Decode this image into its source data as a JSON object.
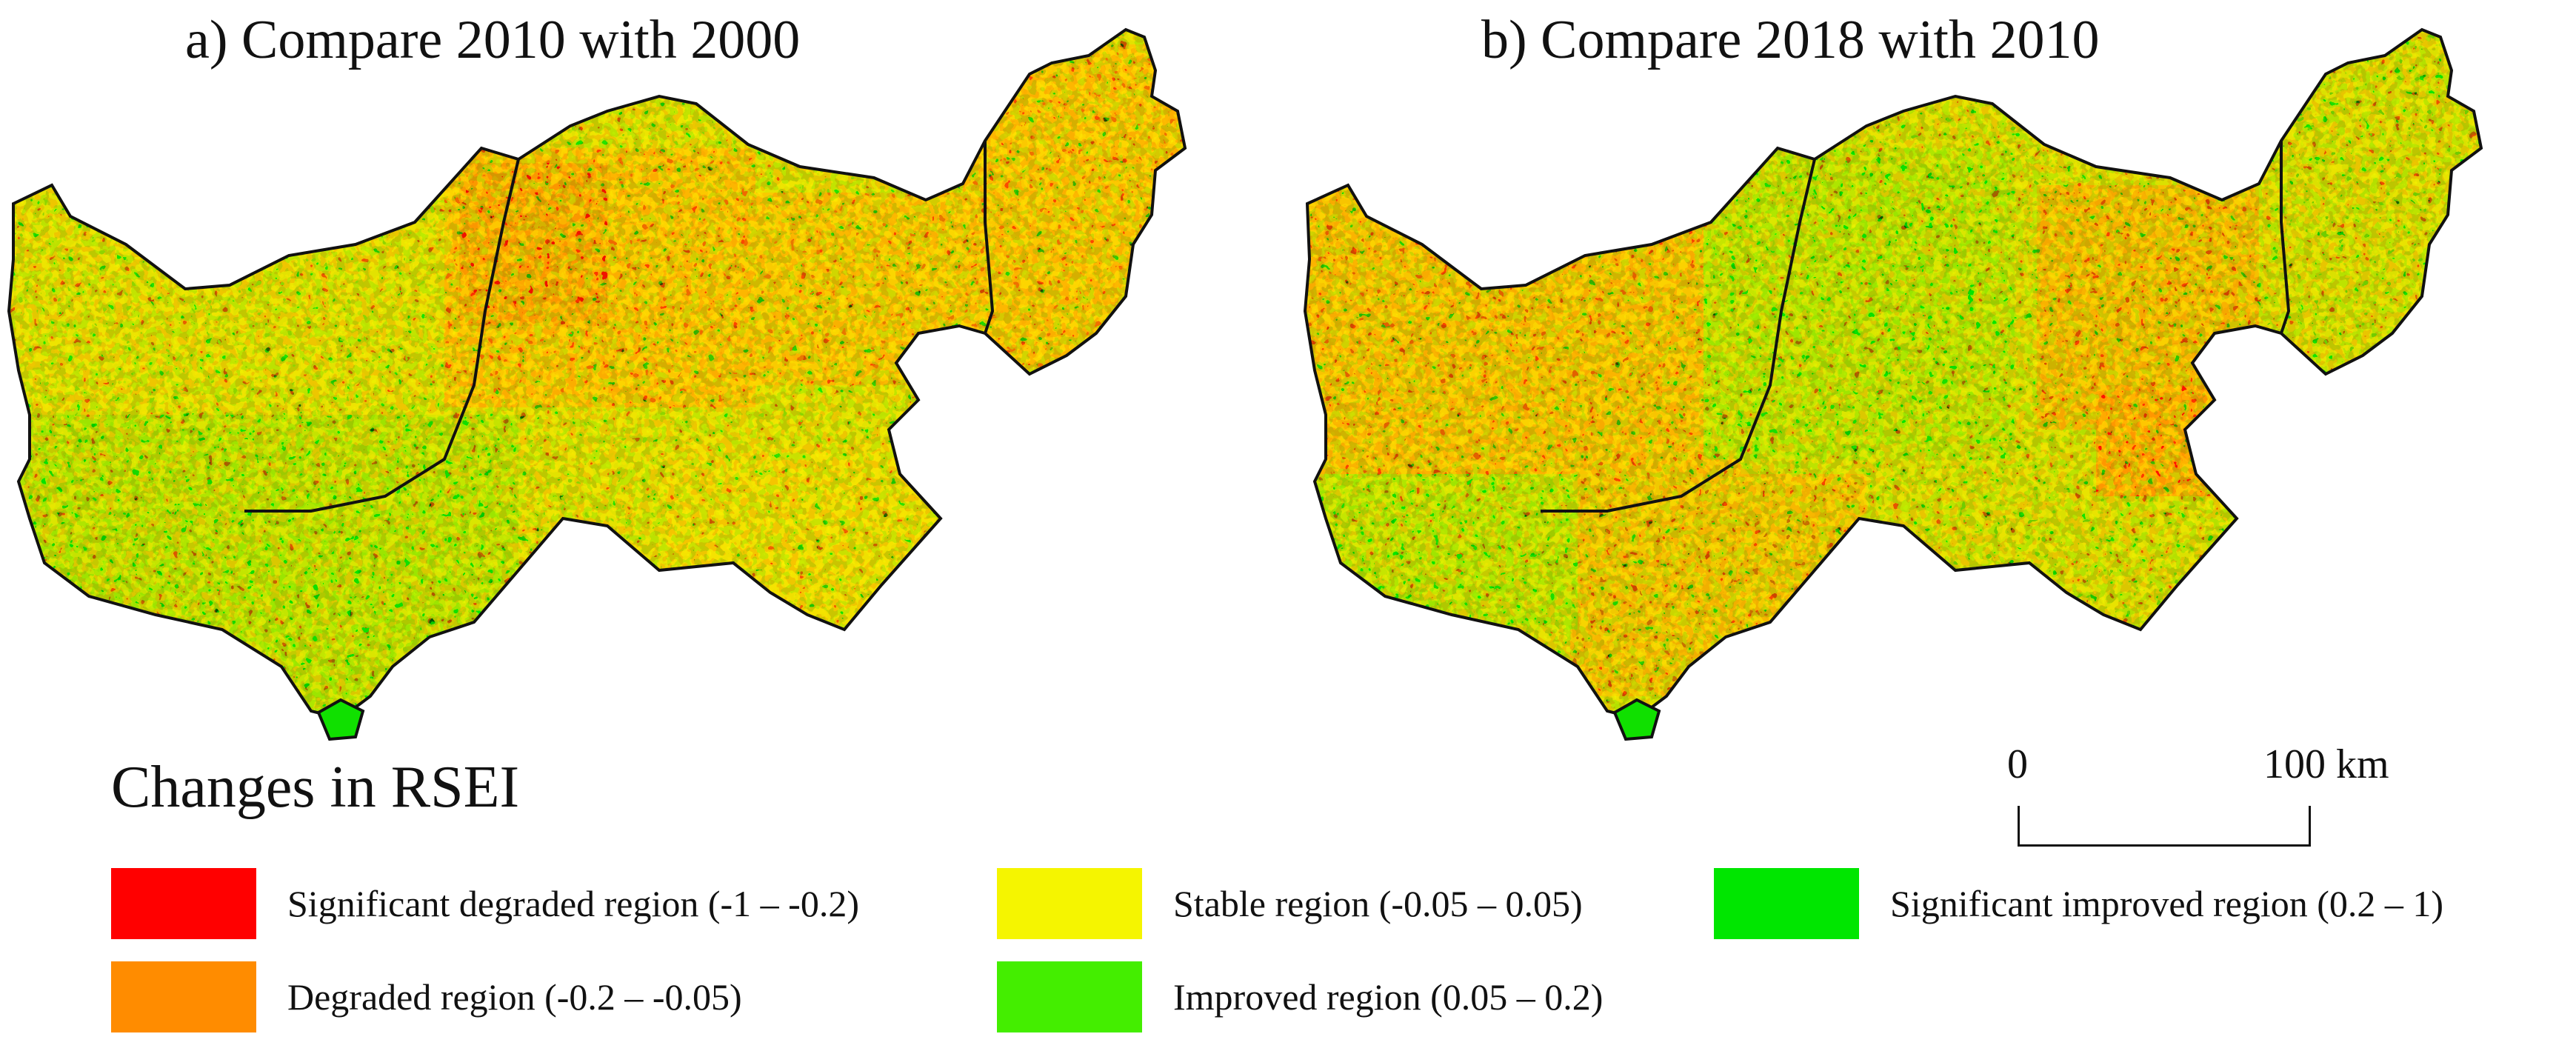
{
  "panels": [
    {
      "title": "a) Compare 2010 with 2000"
    },
    {
      "title": "b) Compare 2018 with 2010"
    }
  ],
  "legend": {
    "title": "Changes in RSEI",
    "items": [
      {
        "label": "Significant degraded region (-1 – -0.2)",
        "color": "#ff0000"
      },
      {
        "label": "Stable region (-0.05 – 0.05)",
        "color": "#f5f500"
      },
      {
        "label": "Significant improved region (0.2 – 1)",
        "color": "#00e600"
      },
      {
        "label": "Degraded region (-0.2 – -0.05)",
        "color": "#ff8c00"
      },
      {
        "label": "Improved region (0.05 – 0.2)",
        "color": "#44ee00"
      }
    ]
  },
  "scale_bar": {
    "start_label": "0",
    "end_label": "100 km"
  },
  "colors": {
    "boundary": "#111111"
  }
}
